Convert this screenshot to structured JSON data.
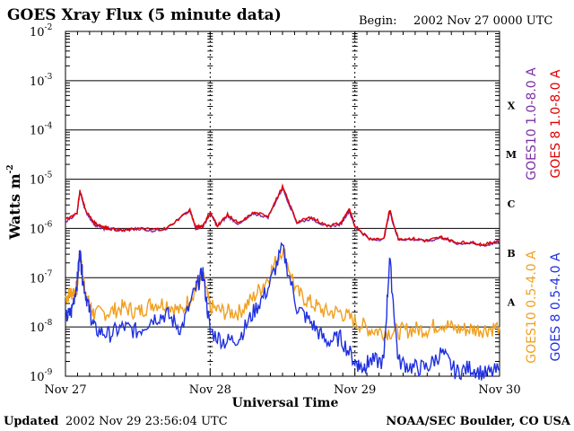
{
  "chart_data": {
    "type": "line",
    "title": "GOES Xray Flux (5 minute data)",
    "begin_label": "Begin:",
    "begin_value": "2002 Nov 27 0000 UTC",
    "xlabel": "Universal Time",
    "ylabel": "Watts m",
    "ylabel_sup": "-2",
    "yscale": "log",
    "ylim": [
      1e-09,
      0.01
    ],
    "y_ticks": [
      {
        "base": "10",
        "exp": "-2",
        "value": 0.01
      },
      {
        "base": "10",
        "exp": "-3",
        "value": 0.001
      },
      {
        "base": "10",
        "exp": "-4",
        "value": 0.0001
      },
      {
        "base": "10",
        "exp": "-5",
        "value": 1e-05
      },
      {
        "base": "10",
        "exp": "-6",
        "value": 1e-06
      },
      {
        "base": "10",
        "exp": "-7",
        "value": 1e-07
      },
      {
        "base": "10",
        "exp": "-8",
        "value": 1e-08
      },
      {
        "base": "10",
        "exp": "-9",
        "value": 1e-09
      }
    ],
    "x_ticks": [
      "Nov 27",
      "Nov 28",
      "Nov 29",
      "Nov 30"
    ],
    "xlim_days": [
      0,
      3
    ],
    "flare_classes": [
      {
        "label": "X",
        "low": 0.0001,
        "high": 0.001
      },
      {
        "label": "M",
        "low": 1e-05,
        "high": 0.0001
      },
      {
        "label": "C",
        "low": 1e-06,
        "high": 1e-05
      },
      {
        "label": "B",
        "low": 1e-07,
        "high": 1e-06
      },
      {
        "label": "A",
        "low": 1e-08,
        "high": 1e-07
      }
    ],
    "grid": true,
    "legend_position": "right",
    "series": [
      {
        "name": "GOES10 1.0-8.0 A",
        "color": "#7b2fa6",
        "x": [
          0,
          0.08,
          0.1,
          0.14,
          0.2,
          0.26,
          0.3,
          0.4,
          0.5,
          0.6,
          0.7,
          0.86,
          0.9,
          0.95,
          1.0,
          1.05,
          1.12,
          1.2,
          1.3,
          1.4,
          1.5,
          1.6,
          1.7,
          1.8,
          1.9,
          1.96,
          2.0,
          2.1,
          2.2,
          2.24,
          2.3,
          2.4,
          2.5,
          2.6,
          2.7,
          2.8,
          2.9,
          3.0
        ],
        "y": [
          1.4e-06,
          2e-06,
          5.6e-06,
          2.2e-06,
          1.2e-06,
          1e-06,
          1e-06,
          9e-07,
          1e-06,
          9e-07,
          1e-06,
          2.3e-06,
          1e-06,
          1.1e-06,
          2e-06,
          1.1e-06,
          1.8e-06,
          1.2e-06,
          2e-06,
          1.7e-06,
          6.5e-06,
          1.3e-06,
          1.6e-06,
          1.1e-06,
          1.2e-06,
          2.3e-06,
          1.1e-06,
          6e-07,
          6e-07,
          2.2e-06,
          6e-07,
          6e-07,
          5.5e-07,
          6.5e-07,
          5e-07,
          5e-07,
          4.5e-07,
          5.5e-07
        ]
      },
      {
        "name": "GOES 8 1.0-8.0 A",
        "color": "#e00000",
        "x": [
          0,
          0.08,
          0.1,
          0.14,
          0.2,
          0.26,
          0.3,
          0.4,
          0.5,
          0.6,
          0.7,
          0.86,
          0.9,
          0.95,
          1.0,
          1.05,
          1.12,
          1.2,
          1.3,
          1.4,
          1.5,
          1.6,
          1.7,
          1.8,
          1.9,
          1.96,
          2.0,
          2.1,
          2.2,
          2.24,
          2.3,
          2.4,
          2.5,
          2.6,
          2.7,
          2.8,
          2.9,
          3.0
        ],
        "y": [
          1.5e-06,
          2.1e-06,
          6e-06,
          2.3e-06,
          1.3e-06,
          1.1e-06,
          1e-06,
          9e-07,
          1e-06,
          9.5e-07,
          1e-06,
          2.4e-06,
          1.05e-06,
          1.15e-06,
          2.1e-06,
          1.15e-06,
          1.9e-06,
          1.25e-06,
          2.1e-06,
          1.8e-06,
          7e-06,
          1.35e-06,
          1.7e-06,
          1.15e-06,
          1.25e-06,
          2.5e-06,
          1.15e-06,
          6.2e-07,
          6.2e-07,
          2.4e-06,
          6.2e-07,
          6.2e-07,
          5.7e-07,
          6.7e-07,
          5.2e-07,
          5.2e-07,
          4.7e-07,
          5.7e-07
        ]
      },
      {
        "name": "GOES10 0.5-4.0 A",
        "color": "#f0a020",
        "x": [
          0,
          0.04,
          0.08,
          0.1,
          0.12,
          0.16,
          0.2,
          0.3,
          0.4,
          0.5,
          0.6,
          0.7,
          0.8,
          0.9,
          0.95,
          1.0,
          1.1,
          1.2,
          1.3,
          1.4,
          1.5,
          1.6,
          1.7,
          1.8,
          1.9,
          2.0,
          2.1,
          2.2,
          2.3,
          2.4,
          2.5,
          2.6,
          2.7,
          2.8,
          2.9,
          3.0
        ],
        "y": [
          4e-08,
          5e-08,
          6e-08,
          3.2e-07,
          1e-07,
          3e-08,
          1.8e-08,
          2e-08,
          2.5e-08,
          2e-08,
          3e-08,
          3e-08,
          2e-08,
          6e-08,
          1e-07,
          2.5e-08,
          2e-08,
          2e-08,
          4e-08,
          1e-07,
          4e-07,
          5e-08,
          3e-08,
          2e-08,
          2e-08,
          1.3e-08,
          9e-09,
          8e-09,
          8e-09,
          9e-09,
          9e-09,
          1.2e-08,
          9e-09,
          9e-09,
          9e-09,
          1e-08
        ]
      },
      {
        "name": "GOES 8 0.5-4.0 A",
        "color": "#1f30e0",
        "x": [
          0,
          0.04,
          0.08,
          0.1,
          0.12,
          0.16,
          0.2,
          0.3,
          0.4,
          0.5,
          0.6,
          0.7,
          0.8,
          0.9,
          0.95,
          1.0,
          1.1,
          1.2,
          1.3,
          1.4,
          1.5,
          1.6,
          1.7,
          1.8,
          1.9,
          2.0,
          2.05,
          2.1,
          2.2,
          2.24,
          2.3,
          2.4,
          2.5,
          2.6,
          2.7,
          2.8,
          2.9,
          3.0
        ],
        "y": [
          1.5e-08,
          2e-08,
          8e-08,
          3.5e-07,
          9e-08,
          2.5e-08,
          9e-09,
          7e-09,
          1e-08,
          8e-09,
          1.5e-08,
          1.8e-08,
          9e-09,
          6e-08,
          1.3e-07,
          8e-09,
          5e-09,
          6e-09,
          2e-08,
          6e-08,
          4e-07,
          2.5e-08,
          1.2e-08,
          5e-09,
          6e-09,
          2e-09,
          1.5e-09,
          2e-09,
          2e-09,
          2.5e-07,
          2e-09,
          1.5e-09,
          1.5e-09,
          3e-09,
          1.2e-09,
          1.5e-09,
          1.1e-09,
          1.3e-09
        ]
      }
    ]
  },
  "footer": {
    "updated_label": "Updated",
    "updated_value": "2002 Nov 29 23:56:04 UTC",
    "credit": "NOAA/SEC Boulder, CO USA"
  }
}
